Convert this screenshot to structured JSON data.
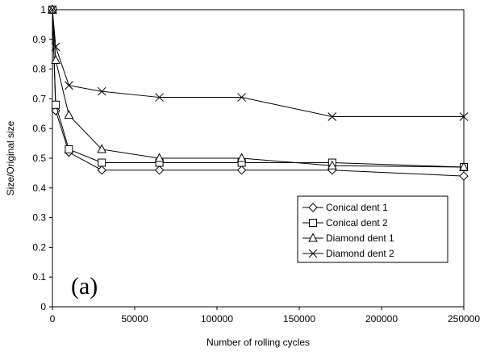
{
  "chart_data": {
    "type": "line",
    "title": "",
    "panel_label": "(a)",
    "xlabel": "Number of rolling cycles",
    "ylabel": "Size/Original size",
    "xlim": [
      0,
      250000
    ],
    "ylim": [
      0,
      1
    ],
    "x_ticks": [
      0,
      50000,
      100000,
      150000,
      200000,
      250000
    ],
    "x_tick_labels": [
      "0",
      "50000",
      "100000",
      "150000",
      "200000",
      "250000"
    ],
    "y_ticks": [
      0,
      0.1,
      0.2,
      0.3,
      0.4,
      0.5,
      0.6,
      0.7,
      0.8,
      0.9,
      1
    ],
    "y_tick_labels": [
      "0",
      "0.1",
      "0.2",
      "0.3",
      "0.4",
      "0.5",
      "0.6",
      "0.7",
      "0.8",
      "0.9",
      "1"
    ],
    "grid": false,
    "legend_position": "bottom-right",
    "series": [
      {
        "name": "Conical dent 1",
        "marker": "diamond",
        "color": "#000000",
        "x": [
          0,
          2000,
          10000,
          30000,
          65000,
          115000,
          170000,
          250000
        ],
        "y": [
          1.0,
          0.66,
          0.52,
          0.46,
          0.46,
          0.46,
          0.46,
          0.44
        ]
      },
      {
        "name": "Conical dent 2",
        "marker": "square",
        "color": "#000000",
        "x": [
          0,
          2000,
          10000,
          30000,
          65000,
          115000,
          170000,
          250000
        ],
        "y": [
          1.0,
          0.68,
          0.53,
          0.485,
          0.485,
          0.485,
          0.485,
          0.47
        ]
      },
      {
        "name": "Diamond dent 1",
        "marker": "triangle",
        "color": "#000000",
        "x": [
          0,
          2000,
          10000,
          30000,
          65000,
          115000,
          170000,
          250000
        ],
        "y": [
          1.0,
          0.83,
          0.645,
          0.53,
          0.5,
          0.5,
          0.475,
          0.47
        ]
      },
      {
        "name": "Diamond dent 2",
        "marker": "x",
        "color": "#000000",
        "x": [
          0,
          2000,
          10000,
          65000,
          115000,
          170000,
          250000,
          30000
        ],
        "y": [
          1.0,
          0.875,
          0.745,
          0.705,
          0.705,
          0.64,
          0.64,
          0.725
        ],
        "order_note": ""
      }
    ]
  }
}
